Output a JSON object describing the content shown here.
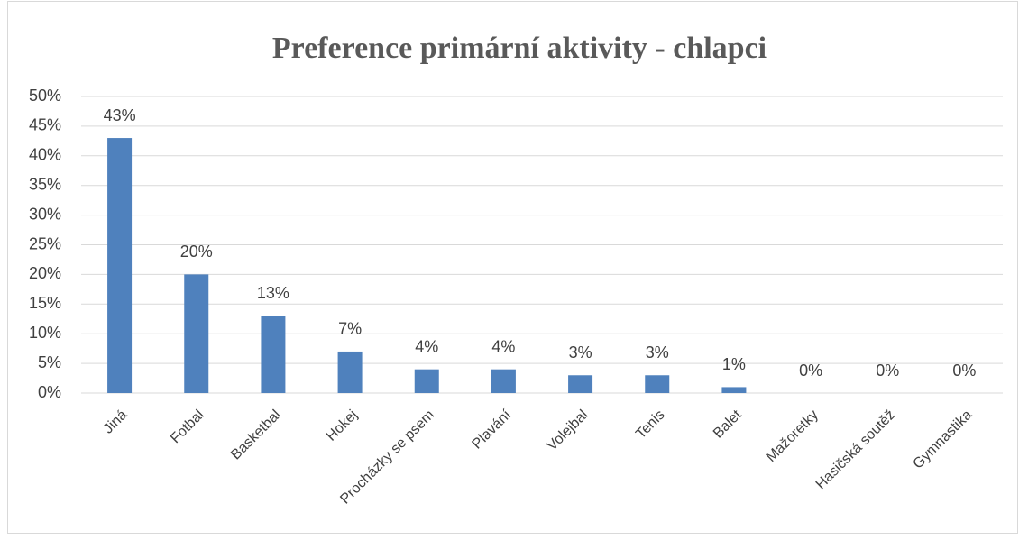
{
  "chart_data": {
    "type": "bar",
    "title": "Preference primární aktivity - chlapci",
    "categories": [
      "Jiná",
      "Fotbal",
      "Basketbal",
      "Hokej",
      "Procházky se psem",
      "Plavání",
      "Volejbal",
      "Tenis",
      "Balet",
      "Mažoretky",
      "Hasičská soutěž",
      "Gymnastika"
    ],
    "values": [
      43,
      20,
      13,
      7,
      4,
      4,
      3,
      3,
      1,
      0,
      0,
      0
    ],
    "value_labels": [
      "43%",
      "20%",
      "13%",
      "7%",
      "4%",
      "4%",
      "3%",
      "3%",
      "1%",
      "0%",
      "0%",
      "0%"
    ],
    "color": "#4f81bd",
    "ylim": [
      0,
      50
    ],
    "yticks": [
      {
        "value": 0,
        "label": "0%"
      },
      {
        "value": 5,
        "label": "5%"
      },
      {
        "value": 10,
        "label": "10%"
      },
      {
        "value": 15,
        "label": "15%"
      },
      {
        "value": 20,
        "label": "20%"
      },
      {
        "value": 25,
        "label": "25%"
      },
      {
        "value": 30,
        "label": "30%"
      },
      {
        "value": 35,
        "label": "35%"
      },
      {
        "value": 40,
        "label": "40%"
      },
      {
        "value": 45,
        "label": "45%"
      },
      {
        "value": 50,
        "label": "50%"
      }
    ],
    "grid": true
  }
}
